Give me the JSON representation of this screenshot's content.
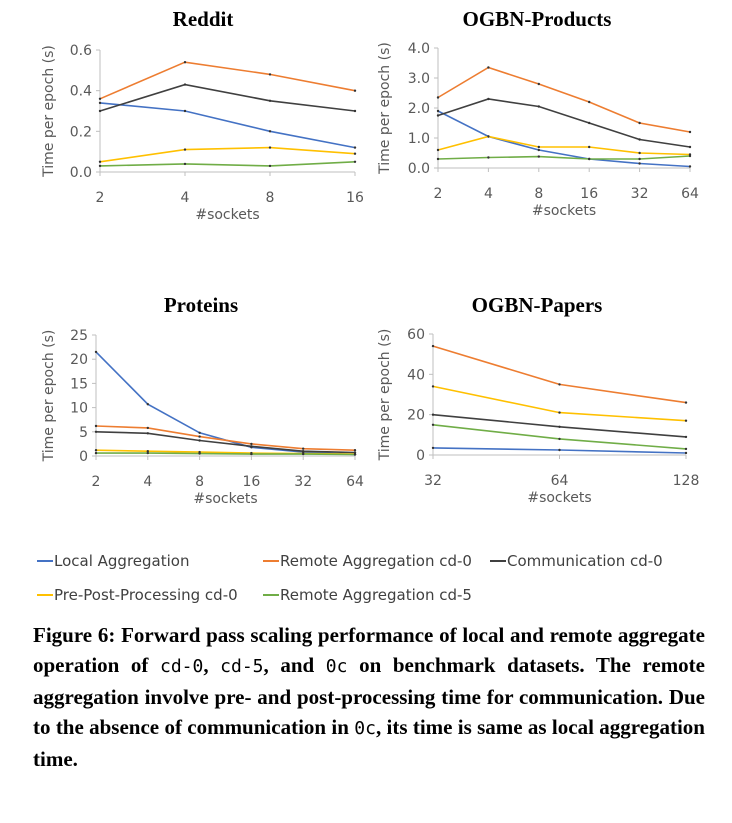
{
  "chart_data": [
    {
      "type": "line",
      "title": "Reddit",
      "xlabel": "#sockets",
      "ylabel": "Time per epoch (s)",
      "categories": [
        "2",
        "4",
        "8",
        "16"
      ],
      "yticks": [
        "0.0",
        "0.2",
        "0.4",
        "0.6"
      ],
      "ylim": [
        0,
        0.6
      ],
      "series": [
        {
          "name": "Local Aggregation",
          "values": [
            0.34,
            0.3,
            0.2,
            0.12
          ]
        },
        {
          "name": "Remote Aggregation cd-0",
          "values": [
            0.36,
            0.54,
            0.48,
            0.4
          ]
        },
        {
          "name": "Communication cd-0",
          "values": [
            0.3,
            0.43,
            0.35,
            0.3
          ]
        },
        {
          "name": "Pre-Post-Processing cd-0",
          "values": [
            0.05,
            0.11,
            0.12,
            0.09
          ]
        },
        {
          "name": "Remote Aggregation cd-5",
          "values": [
            0.03,
            0.04,
            0.03,
            0.05
          ]
        }
      ]
    },
    {
      "type": "line",
      "title": "OGBN-Products",
      "xlabel": "#sockets",
      "ylabel": "Time per epoch (s)",
      "categories": [
        "2",
        "4",
        "8",
        "16",
        "32",
        "64"
      ],
      "yticks": [
        "0.0",
        "1.0",
        "2.0",
        "3.0",
        "4.0"
      ],
      "ylim": [
        0,
        4
      ],
      "series": [
        {
          "name": "Local Aggregation",
          "values": [
            1.9,
            1.05,
            0.6,
            0.3,
            0.15,
            0.05
          ]
        },
        {
          "name": "Remote Aggregation cd-0",
          "values": [
            2.35,
            3.35,
            2.8,
            2.2,
            1.5,
            1.2
          ]
        },
        {
          "name": "Communication cd-0",
          "values": [
            1.75,
            2.3,
            2.05,
            1.5,
            0.95,
            0.7
          ]
        },
        {
          "name": "Pre-Post-Processing cd-0",
          "values": [
            0.6,
            1.05,
            0.7,
            0.7,
            0.5,
            0.45
          ]
        },
        {
          "name": "Remote Aggregation cd-5",
          "values": [
            0.3,
            0.35,
            0.38,
            0.3,
            0.3,
            0.4
          ]
        }
      ]
    },
    {
      "type": "line",
      "title": "Proteins",
      "xlabel": "#sockets",
      "ylabel": "Time per epoch (s)",
      "categories": [
        "2",
        "4",
        "8",
        "16",
        "32",
        "64"
      ],
      "yticks": [
        "0",
        "5",
        "10",
        "15",
        "20",
        "25"
      ],
      "ylim": [
        0,
        25
      ],
      "series": [
        {
          "name": "Local Aggregation",
          "values": [
            21.5,
            10.7,
            4.8,
            1.8,
            0.8,
            0.3
          ]
        },
        {
          "name": "Remote Aggregation cd-0",
          "values": [
            6.2,
            5.8,
            4.0,
            2.5,
            1.5,
            1.2
          ]
        },
        {
          "name": "Communication cd-0",
          "values": [
            5.0,
            4.7,
            3.2,
            2.0,
            1.0,
            0.7
          ]
        },
        {
          "name": "Pre-Post-Processing cd-0",
          "values": [
            1.2,
            1.0,
            0.8,
            0.6,
            0.5,
            0.4
          ]
        },
        {
          "name": "Remote Aggregation cd-5",
          "values": [
            0.6,
            0.6,
            0.5,
            0.4,
            0.4,
            0.3
          ]
        }
      ]
    },
    {
      "type": "line",
      "title": "OGBN-Papers",
      "xlabel": "#sockets",
      "ylabel": "Time per epoch (s)",
      "categories": [
        "32",
        "64",
        "128"
      ],
      "yticks": [
        "0",
        "20",
        "40",
        "60"
      ],
      "ylim": [
        0,
        60
      ],
      "series": [
        {
          "name": "Local Aggregation",
          "values": [
            3.5,
            2.5,
            1.0
          ]
        },
        {
          "name": "Remote Aggregation cd-0",
          "values": [
            54,
            35,
            26
          ]
        },
        {
          "name": "Communication cd-0",
          "values": [
            20,
            14,
            9
          ]
        },
        {
          "name": "Pre-Post-Processing cd-0",
          "values": [
            34,
            21,
            17
          ]
        },
        {
          "name": "Remote Aggregation cd-5",
          "values": [
            15,
            8,
            3
          ]
        }
      ]
    }
  ],
  "legend": [
    {
      "name": "Local Aggregation",
      "color": "#4472c4"
    },
    {
      "name": "Remote Aggregation cd-0",
      "color": "#ed7d31"
    },
    {
      "name": "Communication cd-0",
      "color": "#404040"
    },
    {
      "name": "Pre-Post-Processing cd-0",
      "color": "#ffc000"
    },
    {
      "name": "Remote Aggregation cd-5",
      "color": "#70ad47"
    }
  ],
  "caption": {
    "label": "Figure 6:",
    "part1": "Forward pass scaling performance of local and remote aggregate operation of",
    "code1": "cd-0",
    "sep1": ",",
    "code2": "cd-5",
    "sep2": ", and",
    "code3": "0c",
    "part2": "on benchmark datasets. The remote aggregation involve pre- and post-processing time for communication. Due to the absence of communication in",
    "code4": "0c",
    "part3": ", its time is same as local aggregation time."
  }
}
